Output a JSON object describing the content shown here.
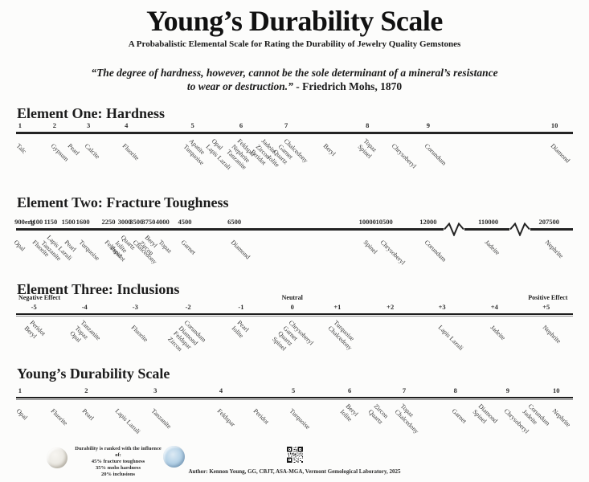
{
  "header": {
    "title": "Young’s Durability Scale",
    "subtitle": "A Probabalistic Elemental Scale for Rating the Durability of Jewelry Quality Gemstones",
    "quote_line1": "“The degree of hardness, however, cannot be the sole determinant of a mineral’s resistance",
    "quote_line2_italic": "to wear or destruction.”",
    "quote_attribution": " - Friedrich Mohs, 1870"
  },
  "chart_data": [
    {
      "id": "hardness",
      "type": "scale",
      "title": "Element One: Hardness",
      "axis_range": [
        1,
        10
      ],
      "ticks": [
        {
          "label": "1",
          "pos": 0.7
        },
        {
          "label": "2",
          "pos": 6.9
        },
        {
          "label": "3",
          "pos": 13.0
        },
        {
          "label": "4",
          "pos": 19.8
        },
        {
          "label": "5",
          "pos": 31.7
        },
        {
          "label": "6",
          "pos": 40.4
        },
        {
          "label": "7",
          "pos": 48.5
        },
        {
          "label": "8",
          "pos": 63.1
        },
        {
          "label": "9",
          "pos": 74.0
        },
        {
          "label": "10",
          "pos": 96.7
        }
      ],
      "gems": [
        {
          "lines": [
            "Talc"
          ],
          "value": 1,
          "pos": 0.7
        },
        {
          "lines": [
            "Gypsum"
          ],
          "value": 2,
          "pos": 6.9
        },
        {
          "lines": [
            "Pearl"
          ],
          "value": 2.5,
          "pos": 10.0
        },
        {
          "lines": [
            "Calcite"
          ],
          "value": 3,
          "pos": 13.0
        },
        {
          "lines": [
            "Fluorite"
          ],
          "value": 4,
          "pos": 19.8
        },
        {
          "lines": [
            "Apatite",
            "Turquoise"
          ],
          "value": 5,
          "pos": 31.7
        },
        {
          "lines": [
            "Opal",
            "Lapis Lazuli"
          ],
          "value": 5.5,
          "pos": 35.8
        },
        {
          "lines": [
            "Feldspar",
            "Nephrite",
            "Tanzanite"
          ],
          "value": 6,
          "pos": 40.4
        },
        {
          "lines": [
            "Jadeite",
            "Zircon",
            "Peridot"
          ],
          "value": 6.5,
          "pos": 44.7
        },
        {
          "lines": [
            "Chalcedony",
            "Garnet",
            "Quartz",
            "Iolite"
          ],
          "value": 7,
          "pos": 48.8
        },
        {
          "lines": [
            "Beryl"
          ],
          "value": 7.7,
          "pos": 55.8
        },
        {
          "lines": [
            "Topaz",
            "Spinel"
          ],
          "value": 8,
          "pos": 63.1
        },
        {
          "lines": [
            "Chrysoberyl"
          ],
          "value": 8.5,
          "pos": 68.1
        },
        {
          "lines": [
            "Corundum"
          ],
          "value": 9,
          "pos": 74.0
        },
        {
          "lines": [
            "Diamond"
          ],
          "value": 10,
          "pos": 96.7
        }
      ],
      "breaks": []
    },
    {
      "id": "fracture-toughness",
      "type": "scale",
      "title": "Element Two: Fracture Toughness",
      "unit": "erg",
      "ticks": [
        {
          "label": "900erg",
          "pos": 1.5
        },
        {
          "label": "1100",
          "pos": 3.6
        },
        {
          "label": "1150",
          "pos": 6.2
        },
        {
          "label": "1500",
          "pos": 9.4
        },
        {
          "label": "1600",
          "pos": 12.0
        },
        {
          "label": "2250",
          "pos": 16.6
        },
        {
          "label": "3000",
          "pos": 19.5
        },
        {
          "label": "3500",
          "pos": 21.6
        },
        {
          "label": "3750",
          "pos": 23.8
        },
        {
          "label": "4000",
          "pos": 26.3
        },
        {
          "label": "4500",
          "pos": 30.3
        },
        {
          "label": "6500",
          "pos": 39.2
        },
        {
          "label": "10000",
          "pos": 63.1
        },
        {
          "label": "10500",
          "pos": 66.1
        },
        {
          "label": "12000",
          "pos": 74.0
        },
        {
          "label": "110000",
          "pos": 84.8
        },
        {
          "label": "207500",
          "pos": 95.7
        }
      ],
      "gems": [
        {
          "lines": [
            "Opal"
          ],
          "value": 900,
          "pos": 0.3
        },
        {
          "lines": [
            "Fluorite"
          ],
          "value": 1100,
          "pos": 3.6
        },
        {
          "lines": [
            "Lapis Lazuli",
            "Tanzanite"
          ],
          "value": 1150,
          "pos": 6.2
        },
        {
          "lines": [
            "Pearl"
          ],
          "value": 1500,
          "pos": 9.4
        },
        {
          "lines": [
            "Turquoise"
          ],
          "value": 1600,
          "pos": 12.0
        },
        {
          "lines": [
            "Feldspar"
          ],
          "value": 2250,
          "pos": 16.6
        },
        {
          "lines": [
            "Quartz",
            "Iolite",
            "Peridot"
          ],
          "value": 3000,
          "pos": 19.5
        },
        {
          "lines": [
            "Chalcedony"
          ],
          "value": 3500,
          "pos": 21.6
        },
        {
          "lines": [
            "Beryl",
            "Zircon"
          ],
          "value": 3750,
          "pos": 23.8
        },
        {
          "lines": [
            "Topaz"
          ],
          "value": 4000,
          "pos": 26.3
        },
        {
          "lines": [
            "Garnet"
          ],
          "value": 4500,
          "pos": 30.3
        },
        {
          "lines": [
            "Diamond"
          ],
          "value": 6500,
          "pos": 39.2
        },
        {
          "lines": [
            "Spinel"
          ],
          "value": 10000,
          "pos": 63.1
        },
        {
          "lines": [
            "Chrysoberyl"
          ],
          "value": 10500,
          "pos": 66.1
        },
        {
          "lines": [
            "Corundum"
          ],
          "value": 12000,
          "pos": 74.0
        },
        {
          "lines": [
            "Jadeite"
          ],
          "value": 110000,
          "pos": 84.8
        },
        {
          "lines": [
            "Nephrite"
          ],
          "value": 207500,
          "pos": 95.7
        }
      ],
      "breaks": [
        78.6,
        90.5
      ]
    },
    {
      "id": "inclusions",
      "type": "scale",
      "title": "Element Three: Inclusions",
      "axis_range": [
        -5,
        5
      ],
      "effect_labels": [
        {
          "label": "Negative Effect",
          "pos": 4.2
        },
        {
          "label": "Neutral",
          "pos": 49.6
        },
        {
          "label": "Positive Effect",
          "pos": 95.5
        }
      ],
      "ticks": [
        {
          "label": "-5",
          "pos": 3.2
        },
        {
          "label": "-4",
          "pos": 12.3
        },
        {
          "label": "-3",
          "pos": 21.4
        },
        {
          "label": "-2",
          "pos": 30.9
        },
        {
          "label": "-1",
          "pos": 40.4
        },
        {
          "label": "0",
          "pos": 49.6
        },
        {
          "label": "+1",
          "pos": 57.7
        },
        {
          "label": "+2",
          "pos": 67.2
        },
        {
          "label": "+3",
          "pos": 76.5
        },
        {
          "label": "+4",
          "pos": 85.9
        },
        {
          "label": "+5",
          "pos": 95.2
        }
      ],
      "gems": [
        {
          "lines": [
            "Peridot",
            "Beryl"
          ],
          "value": -5,
          "pos": 3.2
        },
        {
          "lines": [
            "Tanzanite",
            "Topaz",
            "Opal"
          ],
          "value": -4,
          "pos": 12.3
        },
        {
          "lines": [
            "Fluorite"
          ],
          "value": -3,
          "pos": 21.4
        },
        {
          "lines": [
            "Corundum",
            "Diamond",
            "Feldspar",
            "Zircon"
          ],
          "value": -2,
          "pos": 30.9
        },
        {
          "lines": [
            "Pearl",
            "Iolite"
          ],
          "value": -1,
          "pos": 40.4
        },
        {
          "lines": [
            "Chrysoberyl",
            "Garnet",
            "Quartz",
            "Spinel"
          ],
          "value": 0,
          "pos": 49.6
        },
        {
          "lines": [
            "Turquoise",
            "Chalcedony"
          ],
          "value": 1,
          "pos": 57.7
        },
        {
          "lines": [
            "Lapis Lazuli"
          ],
          "value": 3,
          "pos": 76.5
        },
        {
          "lines": [
            "Jadeite"
          ],
          "value": 4,
          "pos": 85.9
        },
        {
          "lines": [
            "Nephrite"
          ],
          "value": 5,
          "pos": 95.2
        }
      ],
      "breaks": []
    },
    {
      "id": "durability",
      "type": "scale",
      "title": "Young’s Durability Scale",
      "axis_range": [
        1,
        10
      ],
      "ticks": [
        {
          "label": "1",
          "pos": 0.7
        },
        {
          "label": "2",
          "pos": 12.6
        },
        {
          "label": "3",
          "pos": 25.0
        },
        {
          "label": "4",
          "pos": 36.8
        },
        {
          "label": "5",
          "pos": 49.8
        },
        {
          "label": "6",
          "pos": 59.9
        },
        {
          "label": "7",
          "pos": 69.7
        },
        {
          "label": "8",
          "pos": 78.9
        },
        {
          "label": "9",
          "pos": 88.3
        },
        {
          "label": "10",
          "pos": 97.0
        }
      ],
      "gems": [
        {
          "lines": [
            "Opal"
          ],
          "value": 1,
          "pos": 0.7
        },
        {
          "lines": [
            "Fluorite"
          ],
          "value": 1.5,
          "pos": 6.9
        },
        {
          "lines": [
            "Pearl"
          ],
          "value": 2,
          "pos": 12.6
        },
        {
          "lines": [
            "Lapis Lazuli"
          ],
          "value": 2.5,
          "pos": 18.5
        },
        {
          "lines": [
            "Tanzanite"
          ],
          "value": 3,
          "pos": 25.0
        },
        {
          "lines": [
            "Feldspar"
          ],
          "value": 4,
          "pos": 36.8
        },
        {
          "lines": [
            "Peridot"
          ],
          "value": 4.5,
          "pos": 43.3
        },
        {
          "lines": [
            "Turquoise"
          ],
          "value": 5,
          "pos": 49.8
        },
        {
          "lines": [
            "Beryl",
            "Iolite"
          ],
          "value": 6,
          "pos": 59.9
        },
        {
          "lines": [
            "Zircon",
            "Quartz"
          ],
          "value": 6.5,
          "pos": 64.9
        },
        {
          "lines": [
            "Topaz",
            "Chalcedony"
          ],
          "value": 7,
          "pos": 69.7
        },
        {
          "lines": [
            "Garnet"
          ],
          "value": 8,
          "pos": 78.9
        },
        {
          "lines": [
            "Diamond",
            "Spinel"
          ],
          "value": 8.6,
          "pos": 83.7
        },
        {
          "lines": [
            "Chrysoberyl"
          ],
          "value": 9,
          "pos": 88.3
        },
        {
          "lines": [
            "Corundum",
            "Jadeite"
          ],
          "value": 9.5,
          "pos": 92.6
        },
        {
          "lines": [
            "Nephrite"
          ],
          "value": 10,
          "pos": 97.0
        }
      ],
      "breaks": []
    }
  ],
  "footer": {
    "note_line1": "Durability is ranked with the influence of:",
    "note_line2": "45% fracture toughness",
    "note_line3": "35% mohs hardness",
    "note_line4": "20% inclusions",
    "author": "Author: Kennon Young, GG, CBJT, ASA-MGA, Vermont Gemological Laboratory, 2025"
  },
  "colors": {
    "axis": "#232323",
    "background": "#fcfcfb",
    "text": "#1d1d1d"
  }
}
